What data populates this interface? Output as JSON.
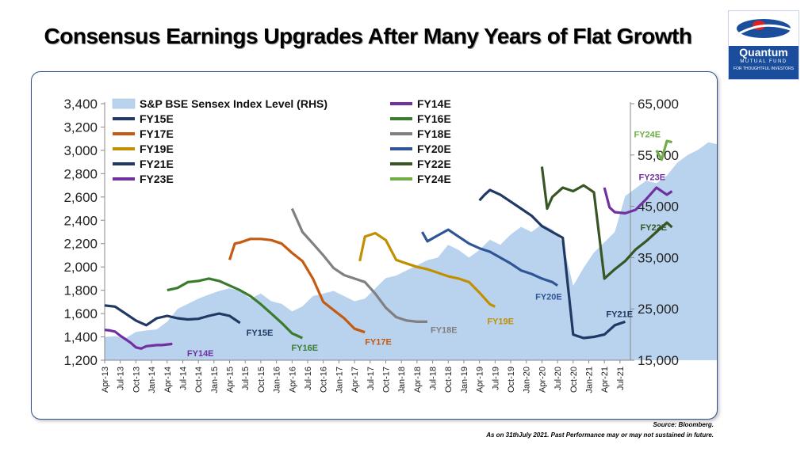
{
  "slide": {
    "title": "Consensus Earnings Upgrades After Many Years of Flat Growth",
    "logo": {
      "name": "Quantum",
      "sub": "MUTUAL FUND",
      "tagline": "FOR THOUGHTFUL INVESTORS"
    },
    "source": "Source: Bloomberg.",
    "note": "As on 31thJuly 2021. Past Performance may or may not sustained in future."
  },
  "chart_data": {
    "type": "line",
    "title": "",
    "ylabel": "",
    "y2label": "",
    "ylim": [
      1200,
      3400
    ],
    "y2lim": [
      15000,
      65000
    ],
    "yticks": [
      "1,200",
      "1,400",
      "1,600",
      "1,800",
      "2,000",
      "2,200",
      "2,400",
      "2,600",
      "2,800",
      "3,000",
      "3,200",
      "3,400"
    ],
    "y2ticks": [
      "15,000",
      "25,000",
      "35,000",
      "45,000",
      "55,000",
      "65,000"
    ],
    "xticks": [
      "Apr-13",
      "Jul-13",
      "Oct-13",
      "Jan-14",
      "Apr-14",
      "Jul-14",
      "Oct-14",
      "Jan-15",
      "Apr-15",
      "Jul-15",
      "Oct-15",
      "Jan-16",
      "Apr-16",
      "Jul-16",
      "Oct-16",
      "Jan-17",
      "Apr-17",
      "Jul-17",
      "Oct-17",
      "Jan-18",
      "Apr-18",
      "Jul-18",
      "Oct-18",
      "Jan-19",
      "Apr-19",
      "Jul-19",
      "Oct-19",
      "Jan-20",
      "Apr-20",
      "Jul-20",
      "Oct-20",
      "Jan-21",
      "Apr-21",
      "Jul-21"
    ],
    "grid": false,
    "legend_position": "top-left",
    "area": {
      "name": "S&P BSE Sensex Index Level (RHS)",
      "color": "#b9d3ee",
      "x": [
        0,
        2,
        4,
        6,
        8,
        10,
        12,
        14,
        16,
        18,
        20,
        22,
        24,
        26,
        28,
        30,
        32,
        34,
        36,
        38,
        40,
        42,
        44,
        46,
        48,
        50,
        52,
        54,
        56,
        58,
        60,
        62,
        64,
        66,
        68,
        70,
        72,
        74,
        76,
        78,
        80,
        82,
        84,
        86,
        88,
        90,
        92,
        94,
        96,
        98,
        99,
        100,
        102,
        104,
        106,
        108,
        110,
        112,
        114,
        116,
        118,
        120,
        121
      ],
      "values": [
        19500,
        19700,
        19300,
        20500,
        20800,
        21000,
        22500,
        25000,
        26000,
        27000,
        27800,
        28500,
        29000,
        28500,
        27000,
        28000,
        26500,
        26000,
        24500,
        25500,
        27500,
        28000,
        28500,
        27500,
        26500,
        27000,
        29000,
        31000,
        31500,
        32500,
        33500,
        34500,
        35000,
        37500,
        36500,
        35000,
        36500,
        38500,
        37500,
        39500,
        41000,
        40000,
        41500,
        40500,
        38000,
        29500,
        33000,
        36000,
        38000,
        40000,
        43500,
        47000,
        48500,
        50000,
        49500,
        51000,
        53500,
        55000,
        56000,
        57500,
        57000,
        56000,
        56500
      ]
    },
    "series": [
      {
        "name": "FY14E",
        "color": "#7030a0",
        "label": "FY14E",
        "x": [
          0,
          1,
          2,
          3,
          4,
          5,
          6,
          7,
          8,
          9,
          10,
          11,
          12,
          13
        ],
        "values": [
          1460,
          1455,
          1445,
          1410,
          1380,
          1350,
          1310,
          1300,
          1320,
          1325,
          1330,
          1330,
          1335,
          1340
        ]
      },
      {
        "name": "FY15E",
        "color": "#1f3864",
        "label": "FY15E",
        "x": [
          0,
          2,
          4,
          6,
          8,
          10,
          12,
          14,
          16,
          18,
          20,
          22,
          24,
          26
        ],
        "values": [
          1670,
          1660,
          1600,
          1540,
          1500,
          1560,
          1580,
          1560,
          1550,
          1555,
          1580,
          1600,
          1580,
          1520
        ]
      },
      {
        "name": "FY16E",
        "color": "#3a7b2e",
        "label": "FY16E",
        "x": [
          12,
          14,
          16,
          18,
          20,
          22,
          24,
          26,
          28,
          30,
          32,
          34,
          36,
          38
        ],
        "values": [
          1800,
          1820,
          1870,
          1880,
          1900,
          1880,
          1840,
          1800,
          1750,
          1680,
          1600,
          1520,
          1430,
          1390
        ]
      },
      {
        "name": "FY17E",
        "color": "#c55a11",
        "label": "FY17E",
        "x": [
          24,
          25,
          26,
          28,
          30,
          32,
          34,
          36,
          38,
          40,
          42,
          44,
          46,
          48,
          50
        ],
        "values": [
          2060,
          2200,
          2210,
          2240,
          2240,
          2230,
          2200,
          2120,
          2050,
          1900,
          1700,
          1630,
          1560,
          1470,
          1440
        ]
      },
      {
        "name": "FY18E",
        "color": "#808080",
        "label": "FY18E",
        "x": [
          36,
          38,
          40,
          42,
          44,
          46,
          48,
          50,
          52,
          54,
          56,
          58,
          60,
          62
        ],
        "values": [
          2500,
          2300,
          2200,
          2100,
          1990,
          1930,
          1900,
          1870,
          1770,
          1650,
          1570,
          1540,
          1530,
          1530
        ]
      },
      {
        "name": "FY19E",
        "color": "#c09000",
        "label": "FY19E",
        "x": [
          49,
          50,
          52,
          54,
          56,
          58,
          60,
          62,
          64,
          66,
          68,
          70,
          72,
          74,
          75
        ],
        "values": [
          2050,
          2260,
          2290,
          2230,
          2060,
          2030,
          2000,
          1980,
          1950,
          1920,
          1900,
          1870,
          1780,
          1680,
          1660
        ]
      },
      {
        "name": "FY20E",
        "color": "#2f5597",
        "label": "FY20E",
        "x": [
          61,
          62,
          64,
          66,
          68,
          70,
          72,
          74,
          76,
          78,
          80,
          82,
          84,
          86,
          87
        ],
        "values": [
          2300,
          2220,
          2270,
          2320,
          2260,
          2200,
          2160,
          2130,
          2080,
          2030,
          1970,
          1940,
          1900,
          1870,
          1840
        ]
      },
      {
        "name": "FY21E",
        "color": "#203864",
        "label": "FY21E",
        "x": [
          72,
          73,
          74,
          76,
          78,
          80,
          82,
          84,
          86,
          88,
          90,
          92,
          94,
          96,
          98,
          100
        ],
        "values": [
          2570,
          2620,
          2660,
          2620,
          2560,
          2500,
          2440,
          2350,
          2300,
          2250,
          1420,
          1390,
          1400,
          1420,
          1500,
          1530
        ]
      },
      {
        "name": "FY22E",
        "color": "#375623",
        "label": "FY22E",
        "x": [
          84,
          85,
          86,
          88,
          90,
          92,
          94,
          96,
          98,
          100,
          102,
          104,
          106,
          108,
          109
        ],
        "values": [
          2860,
          2500,
          2600,
          2680,
          2650,
          2700,
          2640,
          1900,
          1980,
          2050,
          2150,
          2220,
          2300,
          2380,
          2340
        ]
      },
      {
        "name": "FY23E",
        "color": "#7030a0",
        "label": "FY23E",
        "x": [
          96,
          97,
          98,
          100,
          102,
          104,
          106,
          108,
          109
        ],
        "values": [
          2680,
          2510,
          2470,
          2460,
          2490,
          2580,
          2680,
          2620,
          2650
        ]
      },
      {
        "name": "FY24E",
        "color": "#70ad47",
        "label": "FY24E",
        "x": [
          106,
          107,
          108,
          109
        ],
        "values": [
          3000,
          2920,
          3080,
          3070
        ]
      }
    ]
  }
}
